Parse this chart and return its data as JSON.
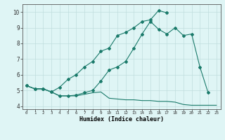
{
  "xlabel": "Humidex (Indice chaleur)",
  "ylabel": "",
  "x_values": [
    0,
    1,
    2,
    3,
    4,
    5,
    6,
    7,
    8,
    9,
    10,
    11,
    12,
    13,
    14,
    15,
    16,
    17,
    18,
    19,
    20,
    21,
    22,
    23
  ],
  "line1": [
    5.3,
    5.1,
    5.1,
    4.9,
    4.65,
    4.65,
    4.65,
    4.75,
    4.85,
    4.9,
    4.5,
    4.45,
    4.4,
    4.4,
    4.35,
    4.35,
    4.3,
    4.3,
    4.25,
    4.1,
    4.05,
    4.05,
    4.05,
    4.05
  ],
  "line2": [
    5.3,
    5.1,
    5.1,
    4.9,
    4.65,
    4.65,
    4.7,
    4.85,
    5.0,
    5.6,
    6.3,
    6.5,
    6.85,
    7.7,
    8.6,
    9.4,
    8.9,
    8.6,
    9.0,
    8.5,
    8.6,
    6.5,
    4.85,
    null
  ],
  "line3": [
    5.3,
    5.1,
    5.1,
    4.9,
    5.2,
    5.7,
    6.0,
    6.5,
    6.85,
    7.5,
    7.7,
    8.5,
    8.7,
    9.0,
    9.4,
    9.5,
    10.1,
    9.95,
    null,
    null,
    null,
    null,
    null,
    null
  ],
  "color": "#1a7a6a",
  "bg_color": "#dff5f5",
  "grid_color": "#c0dede",
  "ylim": [
    3.8,
    10.5
  ],
  "xlim": [
    -0.5,
    23.5
  ],
  "yticks": [
    4,
    5,
    6,
    7,
    8,
    9,
    10
  ],
  "xticks": [
    0,
    1,
    2,
    3,
    4,
    5,
    6,
    7,
    8,
    9,
    10,
    11,
    12,
    13,
    14,
    15,
    16,
    17,
    18,
    19,
    20,
    21,
    22,
    23
  ]
}
